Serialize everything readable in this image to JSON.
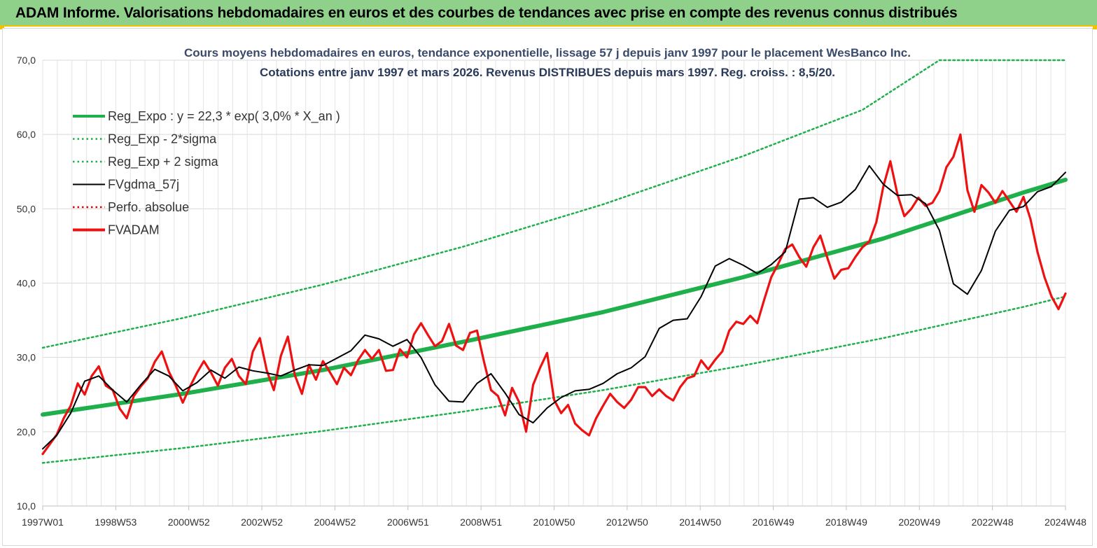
{
  "banner": {
    "title": "ADAM Informe. Valorisations hebdomadaires en euros et des courbes de tendances avec prise en compte des revenus connus distribués"
  },
  "chart_data": {
    "type": "line",
    "title": "Cours moyens hebdomadaires en euros, tendance exponentielle, lissage 57 j depuis janv 1997 pour le placement WesBanco Inc.",
    "subtitle": "Cotations entre janv 1997 et mars 2026. Revenus DISTRIBUES depuis mars 1997. Reg. croiss. : 8,5/20.",
    "xlabel": "",
    "ylabel": "",
    "ylim": [
      10,
      70
    ],
    "y_ticks": [
      "10,0",
      "20,0",
      "30,0",
      "40,0",
      "50,0",
      "60,0",
      "70,0"
    ],
    "x_range": [
      1997.0,
      2026.2
    ],
    "x_ticks": [
      {
        "x": 1997.0,
        "label": "1997W01"
      },
      {
        "x": 1998.98,
        "label": "1998W53"
      },
      {
        "x": 2000.98,
        "label": "2000W52"
      },
      {
        "x": 2002.98,
        "label": "2002W52"
      },
      {
        "x": 2004.98,
        "label": "2004W52"
      },
      {
        "x": 2006.97,
        "label": "2006W51"
      },
      {
        "x": 2008.97,
        "label": "2008W51"
      },
      {
        "x": 2010.95,
        "label": "2010W50"
      },
      {
        "x": 2012.95,
        "label": "2012W50"
      },
      {
        "x": 2014.95,
        "label": "2014W50"
      },
      {
        "x": 2016.94,
        "label": "2016W49"
      },
      {
        "x": 2018.94,
        "label": "2018W49"
      },
      {
        "x": 2020.94,
        "label": "2020W49"
      },
      {
        "x": 2022.92,
        "label": "2022W48"
      },
      {
        "x": 2024.92,
        "label": "2024W48"
      }
    ],
    "grid": true,
    "legend_position": "top-left",
    "series": [
      {
        "name": "Reg_Expo : y = 22,3 * exp( 3,0% *  X_an )",
        "style": "thick",
        "color": "#1fb04b",
        "points": [
          [
            1997.0,
            22.3
          ],
          [
            2001.0,
            25.1
          ],
          [
            2005.0,
            28.3
          ],
          [
            2009.0,
            32.1
          ],
          [
            2013.0,
            36.1
          ],
          [
            2017.0,
            40.8
          ],
          [
            2021.0,
            46.0
          ],
          [
            2025.0,
            52.2
          ],
          [
            2026.2,
            53.9
          ]
        ]
      },
      {
        "name": "Reg_Exp - 2*sigma",
        "style": "dotted",
        "color": "#1fb04b",
        "points": [
          [
            1997.0,
            15.8
          ],
          [
            2001.0,
            17.8
          ],
          [
            2005.0,
            20.1
          ],
          [
            2009.0,
            22.7
          ],
          [
            2013.0,
            25.6
          ],
          [
            2017.0,
            28.9
          ],
          [
            2021.0,
            32.6
          ],
          [
            2025.0,
            36.8
          ],
          [
            2026.2,
            38.2
          ]
        ]
      },
      {
        "name": "Reg_Exp + 2 sigma",
        "style": "dotted",
        "color": "#1fb04b",
        "points": [
          [
            1997.0,
            31.3
          ],
          [
            2001.0,
            35.3
          ],
          [
            2005.0,
            39.8
          ],
          [
            2009.0,
            44.9
          ],
          [
            2013.0,
            50.6
          ],
          [
            2017.0,
            57.1
          ],
          [
            2020.4,
            63.3
          ],
          [
            2022.6,
            70.0
          ],
          [
            2026.2,
            70.0
          ]
        ]
      },
      {
        "name": "FVgdma_57j",
        "style": "solid",
        "color": "#000000",
        "points": [
          [
            1997.0,
            17.7
          ],
          [
            1997.4,
            19.5
          ],
          [
            1997.8,
            22.5
          ],
          [
            1998.2,
            26.8
          ],
          [
            1998.6,
            27.5
          ],
          [
            1999.0,
            25.6
          ],
          [
            1999.4,
            24.0
          ],
          [
            1999.8,
            26.3
          ],
          [
            2000.2,
            28.4
          ],
          [
            2000.6,
            27.5
          ],
          [
            2001.0,
            25.5
          ],
          [
            2001.4,
            26.6
          ],
          [
            2001.8,
            28.3
          ],
          [
            2002.2,
            27.2
          ],
          [
            2002.6,
            28.7
          ],
          [
            2003.0,
            28.2
          ],
          [
            2003.4,
            27.9
          ],
          [
            2003.8,
            27.5
          ],
          [
            2004.2,
            28.3
          ],
          [
            2004.6,
            29.0
          ],
          [
            2005.0,
            28.9
          ],
          [
            2005.4,
            29.9
          ],
          [
            2005.8,
            30.9
          ],
          [
            2006.2,
            33.0
          ],
          [
            2006.6,
            32.5
          ],
          [
            2007.0,
            31.5
          ],
          [
            2007.4,
            32.4
          ],
          [
            2007.8,
            30.0
          ],
          [
            2008.2,
            26.3
          ],
          [
            2008.6,
            24.1
          ],
          [
            2009.0,
            24.0
          ],
          [
            2009.4,
            26.5
          ],
          [
            2009.8,
            27.8
          ],
          [
            2010.2,
            25.2
          ],
          [
            2010.6,
            22.3
          ],
          [
            2011.0,
            21.2
          ],
          [
            2011.4,
            23.2
          ],
          [
            2011.8,
            24.6
          ],
          [
            2012.2,
            25.5
          ],
          [
            2012.6,
            25.7
          ],
          [
            2013.0,
            26.5
          ],
          [
            2013.4,
            27.8
          ],
          [
            2013.8,
            28.6
          ],
          [
            2014.2,
            30.1
          ],
          [
            2014.6,
            33.9
          ],
          [
            2015.0,
            35.0
          ],
          [
            2015.4,
            35.2
          ],
          [
            2015.8,
            38.2
          ],
          [
            2016.2,
            42.3
          ],
          [
            2016.6,
            43.3
          ],
          [
            2017.0,
            42.4
          ],
          [
            2017.4,
            41.3
          ],
          [
            2017.8,
            42.5
          ],
          [
            2018.2,
            44.2
          ],
          [
            2018.6,
            51.3
          ],
          [
            2019.0,
            51.5
          ],
          [
            2019.4,
            50.2
          ],
          [
            2019.8,
            50.9
          ],
          [
            2020.2,
            52.6
          ],
          [
            2020.6,
            55.8
          ],
          [
            2021.0,
            53.3
          ],
          [
            2021.4,
            51.8
          ],
          [
            2021.8,
            51.9
          ],
          [
            2022.2,
            50.7
          ],
          [
            2022.6,
            47.1
          ],
          [
            2023.0,
            39.9
          ],
          [
            2023.4,
            38.5
          ],
          [
            2023.8,
            41.7
          ],
          [
            2024.2,
            47.0
          ],
          [
            2024.6,
            49.8
          ],
          [
            2025.0,
            50.3
          ],
          [
            2025.4,
            52.3
          ],
          [
            2025.8,
            53.0
          ],
          [
            2026.2,
            54.9
          ]
        ]
      },
      {
        "name": "Perfo. absolue",
        "style": "dotted",
        "color": "#e00000",
        "points": []
      },
      {
        "name": "FVADAM",
        "style": "thick",
        "color": "#ee1111",
        "points": [
          [
            1997.0,
            17.0
          ],
          [
            1997.2,
            18.3
          ],
          [
            1997.4,
            19.6
          ],
          [
            1997.6,
            21.8
          ],
          [
            1997.8,
            23.5
          ],
          [
            1998.0,
            26.5
          ],
          [
            1998.2,
            25.0
          ],
          [
            1998.4,
            27.5
          ],
          [
            1998.6,
            28.8
          ],
          [
            1998.8,
            26.2
          ],
          [
            1999.0,
            25.6
          ],
          [
            1999.2,
            23.1
          ],
          [
            1999.4,
            21.8
          ],
          [
            1999.6,
            24.8
          ],
          [
            1999.8,
            26.1
          ],
          [
            2000.0,
            27.2
          ],
          [
            2000.2,
            29.4
          ],
          [
            2000.4,
            30.8
          ],
          [
            2000.6,
            28.1
          ],
          [
            2000.8,
            26.2
          ],
          [
            2001.0,
            23.9
          ],
          [
            2001.2,
            26.0
          ],
          [
            2001.4,
            27.9
          ],
          [
            2001.6,
            29.5
          ],
          [
            2001.8,
            28.0
          ],
          [
            2002.0,
            26.2
          ],
          [
            2002.2,
            28.6
          ],
          [
            2002.4,
            29.8
          ],
          [
            2002.6,
            27.5
          ],
          [
            2002.8,
            26.4
          ],
          [
            2003.0,
            30.8
          ],
          [
            2003.2,
            32.6
          ],
          [
            2003.4,
            28.2
          ],
          [
            2003.6,
            25.6
          ],
          [
            2003.8,
            30.2
          ],
          [
            2004.0,
            32.8
          ],
          [
            2004.2,
            27.6
          ],
          [
            2004.4,
            25.1
          ],
          [
            2004.6,
            29.0
          ],
          [
            2004.8,
            27.0
          ],
          [
            2005.0,
            29.5
          ],
          [
            2005.2,
            28.0
          ],
          [
            2005.4,
            26.4
          ],
          [
            2005.6,
            28.6
          ],
          [
            2005.8,
            27.6
          ],
          [
            2006.0,
            29.6
          ],
          [
            2006.2,
            31.0
          ],
          [
            2006.4,
            29.8
          ],
          [
            2006.6,
            31.0
          ],
          [
            2006.8,
            28.2
          ],
          [
            2007.0,
            28.3
          ],
          [
            2007.2,
            31.1
          ],
          [
            2007.4,
            30.0
          ],
          [
            2007.6,
            33.1
          ],
          [
            2007.8,
            34.6
          ],
          [
            2008.0,
            33.0
          ],
          [
            2008.2,
            31.5
          ],
          [
            2008.4,
            32.2
          ],
          [
            2008.6,
            34.5
          ],
          [
            2008.8,
            31.6
          ],
          [
            2009.0,
            31.0
          ],
          [
            2009.2,
            33.3
          ],
          [
            2009.4,
            33.6
          ],
          [
            2009.6,
            29.4
          ],
          [
            2009.8,
            25.6
          ],
          [
            2010.0,
            24.8
          ],
          [
            2010.2,
            22.2
          ],
          [
            2010.4,
            25.9
          ],
          [
            2010.6,
            24.0
          ],
          [
            2010.8,
            20.0
          ],
          [
            2011.0,
            26.3
          ],
          [
            2011.2,
            28.6
          ],
          [
            2011.4,
            30.6
          ],
          [
            2011.6,
            24.3
          ],
          [
            2011.8,
            22.5
          ],
          [
            2012.0,
            23.6
          ],
          [
            2012.2,
            21.1
          ],
          [
            2012.4,
            20.2
          ],
          [
            2012.6,
            19.5
          ],
          [
            2012.8,
            21.8
          ],
          [
            2013.0,
            23.5
          ],
          [
            2013.2,
            25.1
          ],
          [
            2013.4,
            24.0
          ],
          [
            2013.6,
            23.2
          ],
          [
            2013.8,
            24.3
          ],
          [
            2014.0,
            26.0
          ],
          [
            2014.2,
            26.0
          ],
          [
            2014.4,
            24.8
          ],
          [
            2014.6,
            25.7
          ],
          [
            2014.8,
            24.8
          ],
          [
            2015.0,
            24.2
          ],
          [
            2015.2,
            26.0
          ],
          [
            2015.4,
            27.2
          ],
          [
            2015.6,
            27.5
          ],
          [
            2015.8,
            29.6
          ],
          [
            2016.0,
            28.4
          ],
          [
            2016.2,
            29.7
          ],
          [
            2016.4,
            30.8
          ],
          [
            2016.6,
            33.6
          ],
          [
            2016.8,
            34.8
          ],
          [
            2017.0,
            34.5
          ],
          [
            2017.2,
            35.6
          ],
          [
            2017.4,
            34.6
          ],
          [
            2017.6,
            37.8
          ],
          [
            2017.8,
            40.8
          ],
          [
            2018.0,
            42.6
          ],
          [
            2018.2,
            44.6
          ],
          [
            2018.4,
            45.2
          ],
          [
            2018.6,
            43.5
          ],
          [
            2018.8,
            42.2
          ],
          [
            2019.0,
            44.8
          ],
          [
            2019.2,
            46.4
          ],
          [
            2019.4,
            43.4
          ],
          [
            2019.6,
            40.6
          ],
          [
            2019.8,
            41.8
          ],
          [
            2020.0,
            42.0
          ],
          [
            2020.2,
            43.5
          ],
          [
            2020.4,
            44.8
          ],
          [
            2020.6,
            45.6
          ],
          [
            2020.8,
            48.2
          ],
          [
            2021.0,
            53.0
          ],
          [
            2021.2,
            56.4
          ],
          [
            2021.4,
            52.0
          ],
          [
            2021.6,
            49.0
          ],
          [
            2021.8,
            50.0
          ],
          [
            2022.0,
            51.5
          ],
          [
            2022.2,
            50.4
          ],
          [
            2022.4,
            50.8
          ],
          [
            2022.6,
            52.4
          ],
          [
            2022.8,
            55.6
          ],
          [
            2023.0,
            57.0
          ],
          [
            2023.2,
            60.0
          ],
          [
            2023.4,
            52.5
          ],
          [
            2023.6,
            49.6
          ],
          [
            2023.8,
            53.2
          ],
          [
            2024.0,
            52.2
          ],
          [
            2024.2,
            50.8
          ],
          [
            2024.4,
            52.4
          ],
          [
            2024.6,
            51.0
          ],
          [
            2024.8,
            49.6
          ],
          [
            2025.0,
            51.6
          ],
          [
            2025.2,
            48.6
          ],
          [
            2025.4,
            44.2
          ],
          [
            2025.6,
            40.8
          ],
          [
            2025.8,
            38.2
          ],
          [
            2026.0,
            36.5
          ],
          [
            2026.2,
            38.6
          ]
        ]
      }
    ]
  }
}
